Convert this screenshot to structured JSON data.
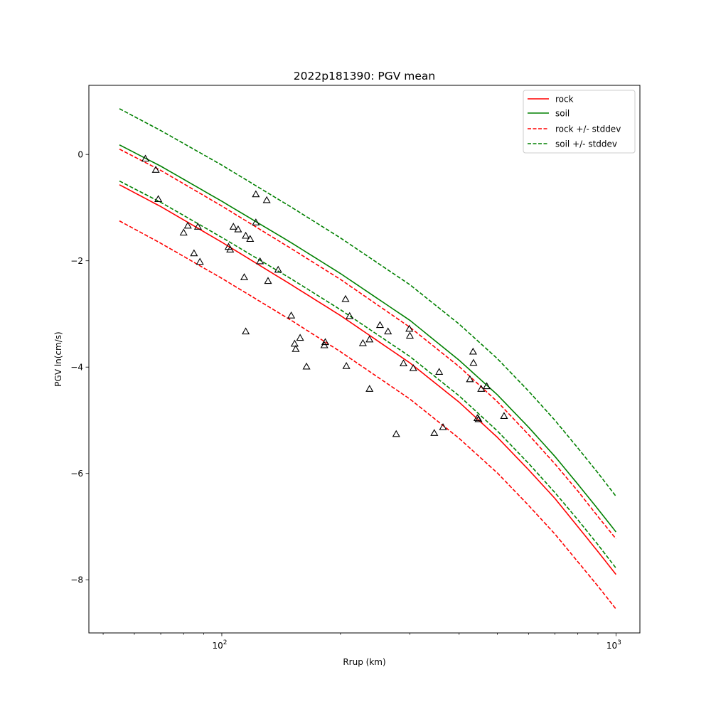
{
  "chart_data": {
    "type": "line",
    "title": "2022p181390: PGV mean",
    "xlabel": "Rrup (km)",
    "ylabel": "PGV ln(cm/s)",
    "x_scale": "log",
    "xlim": [
      46.0,
      1150.0
    ],
    "ylim": [
      -9.0,
      1.3
    ],
    "x_major_ticks": [
      {
        "value": 100,
        "base": "10",
        "exp": "2"
      },
      {
        "value": 1000,
        "base": "10",
        "exp": "3"
      }
    ],
    "x_minor_ticks": [
      50,
      60,
      70,
      80,
      90,
      200,
      300,
      400,
      500,
      600,
      700,
      800,
      900
    ],
    "y_ticks": [
      {
        "value": 0,
        "label": "0"
      },
      {
        "value": -2,
        "label": "−2"
      },
      {
        "value": -4,
        "label": "−4"
      },
      {
        "value": -6,
        "label": "−6"
      },
      {
        "value": -8,
        "label": "−8"
      }
    ],
    "legend_position": "top-right",
    "series": [
      {
        "name": "rock",
        "color": "#ff0000",
        "style": "solid",
        "x": [
          55,
          70,
          100,
          150,
          200,
          300,
          400,
          500,
          600,
          700,
          800,
          900,
          1000
        ],
        "y": [
          -0.57,
          -0.98,
          -1.65,
          -2.45,
          -3.03,
          -3.92,
          -4.66,
          -5.32,
          -5.93,
          -6.47,
          -7.0,
          -7.47,
          -7.9
        ]
      },
      {
        "name": "soil",
        "color": "#008000",
        "style": "solid",
        "x": [
          55,
          70,
          100,
          150,
          200,
          300,
          400,
          500,
          600,
          700,
          800,
          900,
          1000
        ],
        "y": [
          0.18,
          -0.22,
          -0.88,
          -1.66,
          -2.24,
          -3.12,
          -3.87,
          -4.52,
          -5.13,
          -5.68,
          -6.2,
          -6.67,
          -7.1
        ]
      },
      {
        "name": "rock +/- stddev",
        "color": "#ff0000",
        "style": "dashed",
        "x": [
          55,
          70,
          100,
          150,
          200,
          300,
          400,
          500,
          600,
          700,
          800,
          900,
          1000
        ],
        "y": [
          0.1,
          -0.3,
          -0.97,
          -1.77,
          -2.35,
          -3.25,
          -3.99,
          -4.65,
          -5.27,
          -5.82,
          -6.33,
          -6.81,
          -7.23
        ]
      },
      {
        "name": "",
        "color": "#ff0000",
        "style": "dashed",
        "x": [
          55,
          70,
          100,
          150,
          200,
          300,
          400,
          500,
          600,
          700,
          800,
          900,
          1000
        ],
        "y": [
          -1.25,
          -1.67,
          -2.33,
          -3.12,
          -3.71,
          -4.6,
          -5.34,
          -5.99,
          -6.6,
          -7.14,
          -7.66,
          -8.12,
          -8.55
        ]
      },
      {
        "name": "soil +/- stddev",
        "color": "#008000",
        "style": "dashed",
        "x": [
          55,
          70,
          100,
          150,
          200,
          300,
          400,
          500,
          600,
          700,
          800,
          900,
          1000
        ],
        "y": [
          0.86,
          0.45,
          -0.2,
          -0.99,
          -1.57,
          -2.45,
          -3.19,
          -3.84,
          -4.45,
          -5.0,
          -5.52,
          -5.99,
          -6.43
        ]
      },
      {
        "name": "",
        "color": "#008000",
        "style": "dashed",
        "x": [
          55,
          70,
          100,
          150,
          200,
          300,
          400,
          500,
          600,
          700,
          800,
          900,
          1000
        ],
        "y": [
          -0.5,
          -0.9,
          -1.56,
          -2.34,
          -2.92,
          -3.8,
          -4.54,
          -5.2,
          -5.81,
          -6.36,
          -6.87,
          -7.34,
          -7.78
        ]
      }
    ],
    "observations": {
      "marker": "triangle",
      "color": "#000000",
      "points": [
        [
          64,
          -0.08
        ],
        [
          68,
          -0.29
        ],
        [
          69,
          -0.84
        ],
        [
          80,
          -1.47
        ],
        [
          82,
          -1.34
        ],
        [
          85,
          -1.86
        ],
        [
          87,
          -1.36
        ],
        [
          88,
          -2.02
        ],
        [
          104,
          -1.74
        ],
        [
          105,
          -1.79
        ],
        [
          107,
          -1.36
        ],
        [
          110,
          -1.41
        ],
        [
          114,
          -2.31
        ],
        [
          115,
          -1.53
        ],
        [
          115,
          -3.33
        ],
        [
          118,
          -1.59
        ],
        [
          122,
          -0.75
        ],
        [
          122,
          -1.28
        ],
        [
          125,
          -2.01
        ],
        [
          130,
          -0.86
        ],
        [
          131,
          -2.38
        ],
        [
          139,
          -2.17
        ],
        [
          150,
          -3.03
        ],
        [
          153,
          -3.56
        ],
        [
          154,
          -3.66
        ],
        [
          158,
          -3.45
        ],
        [
          164,
          -3.99
        ],
        [
          182,
          -3.59
        ],
        [
          183,
          -3.53
        ],
        [
          206,
          -2.72
        ],
        [
          207,
          -3.98
        ],
        [
          211,
          -3.04
        ],
        [
          228,
          -3.55
        ],
        [
          237,
          -3.48
        ],
        [
          237,
          -4.41
        ],
        [
          252,
          -3.21
        ],
        [
          264,
          -3.33
        ],
        [
          277,
          -5.26
        ],
        [
          289,
          -3.93
        ],
        [
          299,
          -3.28
        ],
        [
          300,
          -3.41
        ],
        [
          306,
          -4.02
        ],
        [
          346,
          -5.24
        ],
        [
          356,
          -4.09
        ],
        [
          364,
          -5.13
        ],
        [
          426,
          -4.23
        ],
        [
          434,
          -3.71
        ],
        [
          435,
          -3.92
        ],
        [
          445,
          -4.96
        ],
        [
          448,
          -4.98
        ],
        [
          455,
          -4.41
        ],
        [
          470,
          -4.36
        ],
        [
          520,
          -4.92
        ]
      ]
    }
  }
}
